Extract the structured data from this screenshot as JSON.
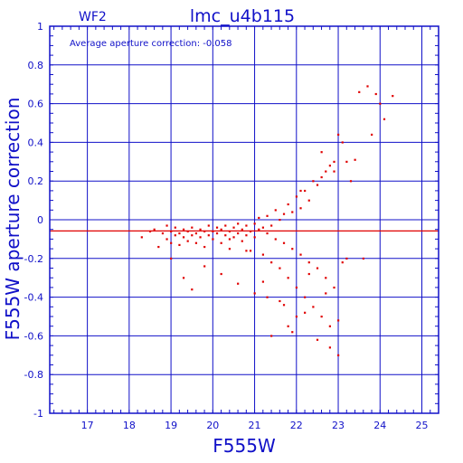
{
  "chart_data": {
    "type": "scatter",
    "title": "lmc_u4b115",
    "chip_label": "WF2",
    "annotation": "Average aperture correction: -0.058",
    "xlabel": "F555W",
    "ylabel": "F555W aperture correction",
    "xlim": [
      16.1,
      25.4
    ],
    "ylim": [
      -1,
      1
    ],
    "xticks": [
      17,
      18,
      19,
      20,
      21,
      22,
      23,
      24,
      25
    ],
    "yticks": [
      -1,
      -0.8,
      -0.6,
      -0.4,
      -0.2,
      0,
      0.2,
      0.4,
      0.6,
      0.8,
      1
    ],
    "grid": true,
    "hline_zero": 0,
    "average_line": -0.058,
    "colors": {
      "axes": "#1010c8",
      "points": "#e00000",
      "title": "#1010c8",
      "average_line": "#e00000"
    },
    "series": [
      {
        "x": [
          18.3,
          18.5,
          18.6,
          18.8,
          18.9,
          18.9,
          19.0,
          19.0,
          19.1,
          19.1,
          19.2,
          19.2,
          19.3,
          19.3,
          19.4,
          19.4,
          19.5,
          19.5,
          19.6,
          19.6,
          19.7,
          19.7,
          19.8,
          19.8,
          19.9,
          19.9,
          20.0,
          20.0,
          20.1,
          20.1,
          20.2,
          20.2,
          20.3,
          20.3,
          20.4,
          20.4,
          20.5,
          20.5,
          20.6,
          20.6,
          20.7,
          20.7,
          20.8,
          20.8,
          20.9,
          20.9,
          21.0,
          21.0,
          21.1,
          21.1,
          21.2,
          21.2,
          21.3,
          21.3,
          21.4,
          21.4,
          21.5,
          21.5,
          21.6,
          21.6,
          21.7,
          21.7,
          21.8,
          21.8,
          21.9,
          21.9,
          22.0,
          22.0,
          22.1,
          22.1,
          22.2,
          22.2,
          22.3,
          22.3,
          22.4,
          22.4,
          22.5,
          22.5,
          22.6,
          22.6,
          22.7,
          22.7,
          22.8,
          22.8,
          22.9,
          22.9,
          23.0,
          23.0,
          23.1,
          23.2,
          23.3,
          23.4,
          23.5,
          23.7,
          23.8,
          23.9,
          24.0,
          24.1,
          24.3,
          18.7,
          19.0,
          19.3,
          19.5,
          19.8,
          20.2,
          20.6,
          21.0,
          21.3,
          21.6,
          21.9,
          22.2,
          22.5,
          22.8,
          23.0,
          23.2,
          23.6,
          21.4,
          21.8,
          22.1,
          22.6,
          22.9,
          20.4,
          20.8,
          21.2,
          21.7,
          22.0,
          22.3,
          22.7,
          23.1
        ],
        "y": [
          -0.09,
          -0.06,
          -0.05,
          -0.07,
          -0.03,
          -0.1,
          -0.06,
          -0.12,
          -0.08,
          -0.04,
          -0.07,
          -0.13,
          -0.05,
          -0.09,
          -0.06,
          -0.11,
          -0.08,
          -0.04,
          -0.07,
          -0.12,
          -0.05,
          -0.09,
          -0.06,
          -0.14,
          -0.03,
          -0.08,
          -0.06,
          -0.1,
          -0.04,
          -0.07,
          -0.05,
          -0.12,
          -0.08,
          -0.03,
          -0.06,
          -0.15,
          -0.04,
          -0.09,
          -0.02,
          -0.07,
          -0.05,
          -0.11,
          -0.03,
          -0.08,
          -0.06,
          -0.16,
          -0.02,
          -0.09,
          0.01,
          -0.05,
          -0.04,
          -0.18,
          0.02,
          -0.07,
          -0.03,
          -0.22,
          0.05,
          -0.1,
          0.0,
          -0.25,
          0.03,
          -0.12,
          0.08,
          -0.3,
          0.04,
          -0.15,
          0.12,
          -0.35,
          0.06,
          -0.18,
          0.15,
          -0.4,
          0.1,
          -0.22,
          0.2,
          -0.45,
          0.18,
          -0.25,
          0.22,
          -0.5,
          0.25,
          -0.3,
          0.28,
          -0.55,
          0.3,
          -0.35,
          0.44,
          -0.52,
          0.4,
          0.3,
          0.2,
          0.31,
          0.66,
          0.69,
          0.44,
          0.65,
          0.6,
          0.52,
          0.64,
          -0.14,
          -0.2,
          -0.3,
          -0.36,
          -0.24,
          -0.28,
          -0.33,
          -0.38,
          -0.4,
          -0.42,
          -0.58,
          -0.48,
          -0.62,
          -0.66,
          -0.7,
          -0.2,
          -0.2,
          -0.6,
          -0.55,
          0.15,
          0.35,
          0.25,
          -0.1,
          -0.16,
          -0.32,
          -0.44,
          -0.5,
          -0.28,
          -0.38,
          -0.22
        ]
      }
    ]
  }
}
